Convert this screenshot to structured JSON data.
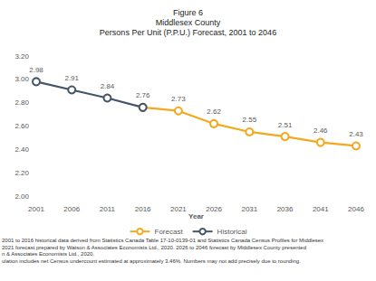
{
  "chart_data": {
    "type": "line",
    "title": [
      "Figure 6",
      "Middlesex County",
      "Persons Per Unit (P.P.U.) Forecast, 2001 to 2046"
    ],
    "xlabel": "Year",
    "categories": [
      "2001",
      "2006",
      "2011",
      "2016",
      "2021",
      "2026",
      "2031",
      "2036",
      "2041",
      "2046"
    ],
    "series": [
      {
        "name": "Forecast",
        "color": "#f4a81d",
        "marker": "circle",
        "values": [
          null,
          null,
          null,
          2.76,
          2.73,
          2.62,
          2.55,
          2.51,
          2.46,
          2.43
        ]
      },
      {
        "name": "Historical",
        "color": "#44546a",
        "marker": "circle",
        "values": [
          2.98,
          2.91,
          2.84,
          2.76,
          null,
          null,
          null,
          null,
          null,
          null
        ]
      }
    ],
    "ylim": [
      2.0,
      3.2
    ],
    "yticks": [
      {
        "value": 2.0,
        "label": "2.00"
      },
      {
        "value": 2.2,
        "label": "2.20"
      },
      {
        "value": 2.4,
        "label": "2.40"
      },
      {
        "value": 2.6,
        "label": "2.60"
      },
      {
        "value": 2.8,
        "label": "2.80"
      },
      {
        "value": 3.0,
        "label": "3.00"
      },
      {
        "value": 3.2,
        "label": "3.20"
      }
    ],
    "grid": false,
    "legend": "bottom",
    "data_labels": true,
    "footnotes": [
      "2001 to 2016 historical data derived from Statistics Canada Table 17-10-0139-01 and Statistics Canada Census Profiles for Middlesex",
      "2021 forecast prepared by Watson & Associates Economists Ltd., 2020. 2026 to 2046 forecast by Middlesex County presented",
      "n & Associates Economists Ltd., 2020.",
      "ulation includes net Census undercount estimated at approximately 3.46%. Numbers may not add precisely due to rounding."
    ]
  }
}
